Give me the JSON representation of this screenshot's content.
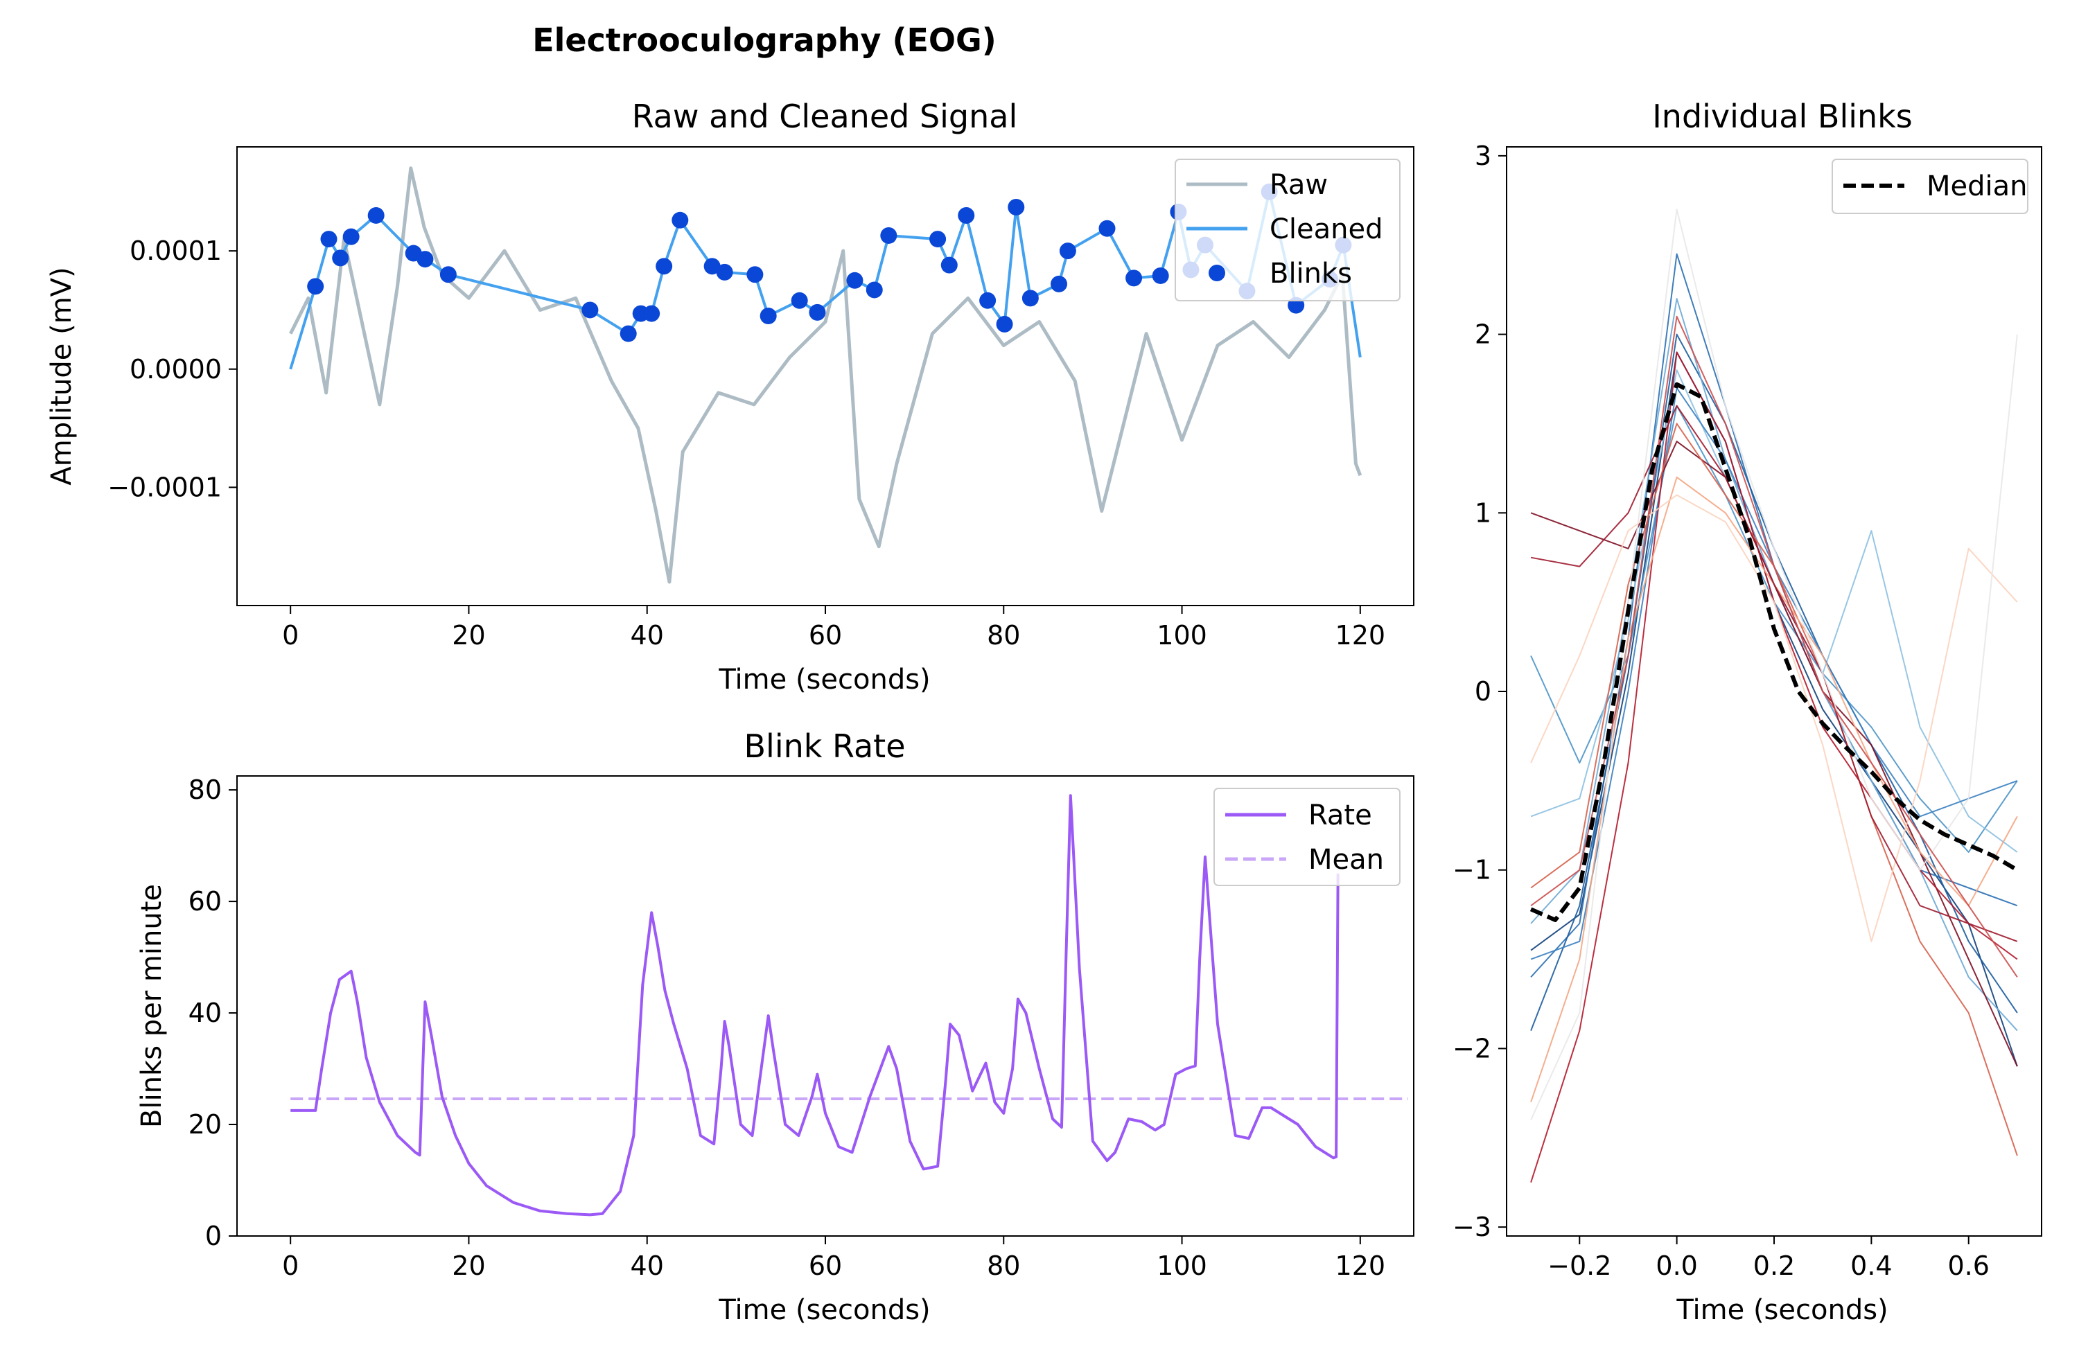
{
  "figure": {
    "title": "Electrooculography (EOG)"
  },
  "chart_data": [
    {
      "type": "line",
      "id": "signal",
      "title": "Raw and Cleaned Signal",
      "xlabel": "Time (seconds)",
      "ylabel": "Amplitude (mV)",
      "xlim": [
        -6,
        126
      ],
      "ylim": [
        -0.0002,
        0.000188
      ],
      "xticks": [
        0,
        20,
        40,
        60,
        80,
        100,
        120
      ],
      "xtick_labels": [
        "0",
        "20",
        "40",
        "60",
        "80",
        "100",
        "120"
      ],
      "yticks": [
        -0.0001,
        0.0,
        0.0001
      ],
      "ytick_labels": [
        "−0.0001",
        "0.0000",
        "0.0001"
      ],
      "legend": {
        "position": "top-right",
        "entries": [
          "Raw",
          "Cleaned",
          "Blinks"
        ]
      },
      "colors": {
        "raw": "#adbcc4",
        "cleaned": "#43a1ef",
        "blinks": "#0b47d6"
      },
      "series": [
        {
          "name": "Raw",
          "x": [
            0,
            2,
            4,
            6,
            8,
            10,
            12,
            13.5,
            15,
            17,
            20,
            24,
            28,
            32,
            36,
            39,
            41,
            42.5,
            44,
            48,
            52,
            56,
            60,
            62,
            63.8,
            66,
            68,
            72,
            76,
            80,
            84,
            88,
            91,
            96,
            100,
            104,
            108,
            112,
            116,
            118,
            119.5,
            120
          ],
          "y": [
            3e-05,
            6e-05,
            -2e-05,
            0.00011,
            4e-05,
            -3e-05,
            7e-05,
            0.00017,
            0.00012,
            8e-05,
            6e-05,
            0.0001,
            5e-05,
            6e-05,
            -1e-05,
            -5e-05,
            -0.00012,
            -0.00018,
            -7e-05,
            -2e-05,
            -3e-05,
            1e-05,
            4e-05,
            0.0001,
            -0.00011,
            -0.00015,
            -8e-05,
            3e-05,
            6e-05,
            2e-05,
            4e-05,
            -1e-05,
            -0.00012,
            3e-05,
            -6e-05,
            2e-05,
            4e-05,
            1e-05,
            5e-05,
            8e-05,
            -8e-05,
            -9e-05
          ]
        },
        {
          "name": "Cleaned",
          "x": [
            0,
            2.8,
            4.3,
            5.6,
            6.8,
            9.6,
            13.8,
            15.1,
            17.7,
            33.6,
            37.9,
            39.3,
            40.5,
            41.9,
            43.7,
            47.3,
            48.7,
            52.1,
            53.6,
            57.1,
            59.1,
            63.3,
            65.5,
            67.1,
            72.6,
            73.9,
            75.8,
            78.2,
            80.1,
            81.4,
            83.0,
            86.2,
            87.2,
            91.6,
            94.6,
            97.6,
            99.6,
            101.0,
            102.6,
            107.3,
            109.8,
            112.8,
            116.6,
            118.1,
            120
          ],
          "y": [
            0.0,
            7e-05,
            0.00011,
            9.4e-05,
            0.000112,
            0.00013,
            9.8e-05,
            9.3e-05,
            8e-05,
            5e-05,
            3e-05,
            4.7e-05,
            4.7e-05,
            8.7e-05,
            0.000126,
            8.7e-05,
            8.2e-05,
            8e-05,
            4.5e-05,
            5.8e-05,
            4.8e-05,
            7.5e-05,
            6.7e-05,
            0.000113,
            0.00011,
            8.8e-05,
            0.00013,
            5.8e-05,
            3.8e-05,
            0.000137,
            6e-05,
            7.2e-05,
            0.0001,
            0.000119,
            7.7e-05,
            7.9e-05,
            0.000133,
            8.4e-05,
            0.000105,
            6.6e-05,
            0.00015,
            5.4e-05,
            7.6e-05,
            0.000105,
            1e-05
          ]
        },
        {
          "name": "Blinks",
          "x": [
            2.8,
            4.3,
            5.6,
            6.8,
            9.6,
            13.8,
            15.1,
            17.7,
            33.6,
            37.9,
            39.3,
            40.5,
            41.9,
            43.7,
            47.3,
            48.7,
            52.1,
            53.6,
            57.1,
            59.1,
            63.3,
            65.5,
            67.1,
            72.6,
            73.9,
            75.8,
            78.2,
            80.1,
            81.4,
            83.0,
            86.2,
            87.2,
            91.6,
            94.6,
            97.6,
            99.6,
            101.0,
            102.6,
            107.3,
            109.8,
            112.8,
            116.6,
            118.1
          ],
          "y": [
            7e-05,
            0.00011,
            9.4e-05,
            0.000112,
            0.00013,
            9.8e-05,
            9.3e-05,
            8e-05,
            5e-05,
            3e-05,
            4.7e-05,
            4.7e-05,
            8.7e-05,
            0.000126,
            8.7e-05,
            8.2e-05,
            8e-05,
            4.5e-05,
            5.8e-05,
            4.8e-05,
            7.5e-05,
            6.7e-05,
            0.000113,
            0.00011,
            8.8e-05,
            0.00013,
            5.8e-05,
            3.8e-05,
            0.000137,
            6e-05,
            7.2e-05,
            0.0001,
            0.000119,
            7.7e-05,
            7.9e-05,
            0.000133,
            8.4e-05,
            0.000105,
            6.6e-05,
            0.00015,
            5.4e-05,
            7.6e-05,
            0.000105
          ]
        }
      ]
    },
    {
      "type": "line",
      "id": "rate",
      "title": "Blink Rate",
      "xlabel": "Time (seconds)",
      "ylabel": "Blinks per minute",
      "xlim": [
        -6,
        126
      ],
      "ylim": [
        0,
        82.5
      ],
      "xticks": [
        0,
        20,
        40,
        60,
        80,
        100,
        120
      ],
      "xtick_labels": [
        "0",
        "20",
        "40",
        "60",
        "80",
        "100",
        "120"
      ],
      "yticks": [
        0,
        20,
        40,
        60,
        80
      ],
      "ytick_labels": [
        "0",
        "20",
        "40",
        "60",
        "80"
      ],
      "legend": {
        "position": "top-right",
        "entries": [
          "Rate",
          "Mean"
        ]
      },
      "colors": {
        "rate": "#9b59f6",
        "mean": "#c9a6f7"
      },
      "mean": 24.6,
      "series": [
        {
          "name": "Rate",
          "x": [
            0,
            2.8,
            3.5,
            4.5,
            5.5,
            6.8,
            7.5,
            8.5,
            10,
            12,
            14,
            14.5,
            15.1,
            15.8,
            17,
            18.5,
            20,
            22,
            25,
            28,
            31,
            33.6,
            35,
            37,
            38.5,
            39.5,
            40.5,
            41.2,
            42,
            43,
            44.5,
            46,
            47.5,
            48.3,
            48.7,
            49.2,
            50.5,
            51.8,
            53.6,
            54.2,
            55.5,
            57,
            58.5,
            59.1,
            60,
            61.5,
            63,
            65,
            67.1,
            68,
            69.5,
            71,
            72.6,
            73.5,
            74,
            75,
            76.5,
            78,
            79,
            80,
            81,
            81.6,
            82.5,
            84,
            85.5,
            86.5,
            87,
            87.5,
            88.5,
            90,
            91.6,
            92.5,
            94,
            95.5,
            97,
            98,
            99.3,
            100.5,
            101.5,
            102,
            102.6,
            103.2,
            104,
            106,
            107.5,
            109,
            110,
            111.5,
            113,
            115,
            117,
            117.3,
            117.5
          ],
          "y": [
            22.5,
            22.5,
            30,
            40,
            46,
            47.5,
            42,
            32,
            24,
            18,
            15,
            14.5,
            42,
            36,
            25,
            18,
            13,
            9,
            6,
            4.5,
            4,
            3.8,
            4,
            8,
            18,
            45,
            58,
            52,
            44,
            38,
            30,
            18,
            16.5,
            30,
            38.5,
            34,
            20,
            18,
            39.5,
            33,
            20,
            18,
            25,
            29,
            22,
            16,
            15,
            25,
            34,
            30,
            17,
            12,
            12.5,
            28,
            38,
            36,
            26,
            31,
            24,
            22,
            30,
            42.5,
            40,
            30,
            21,
            19.5,
            50,
            79,
            48,
            17,
            13.5,
            15,
            21,
            20.5,
            19,
            20,
            29,
            30,
            30.5,
            50,
            68,
            55,
            38,
            18,
            17.5,
            23,
            23,
            21.5,
            20,
            16,
            14,
            14.2,
            65
          ]
        }
      ]
    },
    {
      "type": "line",
      "id": "blinks",
      "title": "Individual Blinks",
      "xlabel": "Time (seconds)",
      "ylabel": "",
      "xlim": [
        -0.35,
        0.75
      ],
      "ylim": [
        -3.05,
        3.05
      ],
      "xticks": [
        -0.2,
        0.0,
        0.2,
        0.4,
        0.6
      ],
      "xtick_labels": [
        "−0.2",
        "0.0",
        "0.2",
        "0.4",
        "0.6"
      ],
      "yticks": [
        -3,
        -2,
        -1,
        0,
        1,
        2,
        3
      ],
      "ytick_labels": [
        "−3",
        "−2",
        "−1",
        "0",
        "1",
        "2",
        "3"
      ],
      "legend": {
        "position": "top-right",
        "entries": [
          "Median"
        ]
      },
      "colors": {
        "median": "#000000"
      },
      "series": [
        {
          "name": "Median",
          "x": [
            -0.3,
            -0.25,
            -0.2,
            -0.15,
            -0.1,
            -0.05,
            0.0,
            0.05,
            0.1,
            0.15,
            0.2,
            0.25,
            0.3,
            0.35,
            0.4,
            0.45,
            0.5,
            0.55,
            0.6,
            0.65,
            0.7
          ],
          "y": [
            -1.22,
            -1.28,
            -1.1,
            -0.4,
            0.45,
            1.25,
            1.72,
            1.65,
            1.25,
            0.85,
            0.35,
            0.0,
            -0.18,
            -0.32,
            -0.45,
            -0.6,
            -0.72,
            -0.8,
            -0.86,
            -0.92,
            -1.0
          ]
        },
        {
          "name": "Blink 1",
          "color": "#0f3f7a",
          "x": [
            -0.3,
            -0.2,
            -0.1,
            0.0,
            0.1,
            0.2,
            0.3,
            0.4,
            0.5,
            0.6,
            0.7
          ],
          "y": [
            -1.45,
            -1.25,
            0.1,
            1.9,
            1.4,
            0.5,
            -0.1,
            -0.5,
            -0.9,
            -1.3,
            -2.1
          ]
        },
        {
          "name": "Blink 2",
          "color": "#2a6fb3",
          "x": [
            -0.3,
            -0.2,
            -0.1,
            0.0,
            0.1,
            0.2,
            0.3,
            0.4,
            0.5,
            0.6,
            0.7
          ],
          "y": [
            -1.6,
            -1.3,
            0.3,
            2.45,
            1.6,
            0.7,
            0.0,
            -0.5,
            -1.0,
            -1.1,
            -1.2
          ]
        },
        {
          "name": "Blink 3",
          "color": "#4b94c8",
          "x": [
            -0.3,
            -0.2,
            -0.1,
            0.0,
            0.1,
            0.2,
            0.3,
            0.4,
            0.5,
            0.6,
            0.7
          ],
          "y": [
            0.2,
            -0.4,
            0.2,
            1.6,
            1.1,
            0.5,
            0.1,
            -0.2,
            -0.6,
            -0.9,
            -0.5
          ]
        },
        {
          "name": "Blink 4",
          "color": "#8cc0e0",
          "x": [
            -0.3,
            -0.2,
            -0.1,
            0.0,
            0.1,
            0.2,
            0.3,
            0.4,
            0.5,
            0.6,
            0.7
          ],
          "y": [
            -0.7,
            -0.6,
            0.4,
            1.8,
            1.2,
            0.6,
            0.1,
            0.9,
            -0.2,
            -0.7,
            -0.9
          ]
        },
        {
          "name": "Blink 5",
          "color": "#1b5c9e",
          "x": [
            -0.3,
            -0.2,
            -0.1,
            0.0,
            0.1,
            0.2,
            0.3,
            0.4,
            0.5,
            0.6,
            0.7
          ],
          "y": [
            -1.9,
            -1.2,
            0.2,
            2.0,
            1.5,
            0.8,
            0.2,
            -0.3,
            -0.8,
            -1.4,
            -1.8
          ]
        },
        {
          "name": "Blink 6",
          "color": "#6da9d4",
          "x": [
            -0.3,
            -0.2,
            -0.1,
            0.0,
            0.1,
            0.2,
            0.3,
            0.4,
            0.5,
            0.6,
            0.7
          ],
          "y": [
            -1.3,
            -1.0,
            0.5,
            2.2,
            1.3,
            0.6,
            0.0,
            -0.5,
            -1.0,
            -1.6,
            -1.9
          ]
        },
        {
          "name": "Blink 7",
          "color": "#3a80c0",
          "x": [
            -0.3,
            -0.2,
            -0.1,
            0.0,
            0.1,
            0.2,
            0.3,
            0.4,
            0.5,
            0.6,
            0.7
          ],
          "y": [
            -1.5,
            -1.4,
            0.0,
            1.7,
            1.3,
            0.7,
            0.2,
            -0.3,
            -0.7,
            -0.6,
            -0.5
          ]
        },
        {
          "name": "Blink 8",
          "color": "#7d0d22",
          "x": [
            -0.3,
            -0.2,
            -0.1,
            0.0,
            0.1,
            0.2,
            0.3,
            0.4,
            0.5,
            0.6,
            0.7
          ],
          "y": [
            1.0,
            0.9,
            0.8,
            1.4,
            1.2,
            0.6,
            0.0,
            -0.3,
            -0.9,
            -1.5,
            -2.1
          ]
        },
        {
          "name": "Blink 9",
          "color": "#b2182b",
          "x": [
            -0.3,
            -0.2,
            -0.1,
            0.0,
            0.1,
            0.2,
            0.3,
            0.4,
            0.5,
            0.6,
            0.7
          ],
          "y": [
            -2.75,
            -1.9,
            -0.4,
            1.9,
            1.4,
            0.5,
            -0.2,
            -0.6,
            -1.0,
            -1.3,
            -1.5
          ]
        },
        {
          "name": "Blink 10",
          "color": "#d6604d",
          "x": [
            -0.3,
            -0.2,
            -0.1,
            0.0,
            0.1,
            0.2,
            0.3,
            0.4,
            0.5,
            0.6,
            0.7
          ],
          "y": [
            -1.1,
            -0.9,
            0.6,
            1.5,
            1.1,
            0.7,
            0.1,
            -0.7,
            -1.4,
            -1.8,
            -2.6
          ]
        },
        {
          "name": "Blink 11",
          "color": "#f4a582",
          "x": [
            -0.3,
            -0.2,
            -0.1,
            0.0,
            0.1,
            0.2,
            0.3,
            0.4,
            0.5,
            0.6,
            0.7
          ],
          "y": [
            -2.3,
            -1.5,
            0.3,
            1.2,
            1.0,
            0.6,
            0.2,
            -0.4,
            -0.9,
            -1.2,
            -0.7
          ]
        },
        {
          "name": "Blink 12",
          "color": "#fbd3bf",
          "x": [
            -0.3,
            -0.2,
            -0.1,
            0.0,
            0.1,
            0.2,
            0.3,
            0.4,
            0.5,
            0.6,
            0.7
          ],
          "y": [
            -0.4,
            0.2,
            0.9,
            1.1,
            0.95,
            0.5,
            -0.3,
            -1.4,
            -0.5,
            0.8,
            0.5
          ]
        },
        {
          "name": "Blink 13",
          "color": "#9e1a2e",
          "x": [
            -0.3,
            -0.2,
            -0.1,
            0.0,
            0.1,
            0.2,
            0.3,
            0.4,
            0.5,
            0.6,
            0.7
          ],
          "y": [
            0.75,
            0.7,
            1.0,
            1.6,
            1.2,
            0.6,
            0.1,
            -0.7,
            -1.2,
            -1.3,
            -1.4
          ]
        },
        {
          "name": "Blink 14",
          "color": "#e8e8e8",
          "x": [
            -0.3,
            -0.2,
            -0.1,
            0.0,
            0.1,
            0.2,
            0.3,
            0.4,
            0.5,
            0.6,
            0.7
          ],
          "y": [
            -2.4,
            -1.8,
            0.5,
            2.7,
            1.6,
            0.8,
            0.1,
            -0.6,
            -1.0,
            -0.6,
            2.0
          ]
        },
        {
          "name": "Blink 15",
          "color": "#cc4c4c",
          "x": [
            -0.3,
            -0.2,
            -0.1,
            0.0,
            0.1,
            0.2,
            0.3,
            0.4,
            0.5,
            0.6,
            0.7
          ],
          "y": [
            -1.2,
            -1.0,
            0.2,
            2.1,
            1.5,
            0.7,
            0.0,
            -0.4,
            -0.8,
            -1.2,
            -1.6
          ]
        }
      ]
    }
  ]
}
